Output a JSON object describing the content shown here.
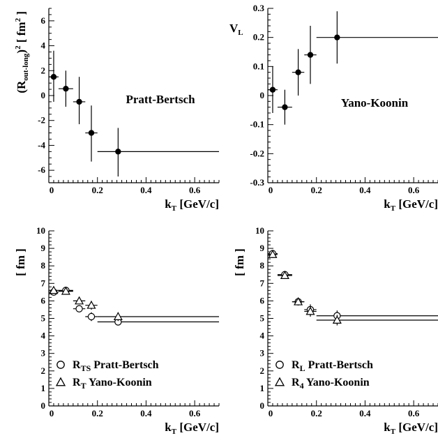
{
  "chart_data": [
    {
      "type": "scatter",
      "annotation": "Pratt-Bertsch",
      "xlabel": "k",
      "xlabel_sub": "T",
      "xlabel_unit": " [GeV/c]",
      "ylabel": "(R",
      "ylabel_sub": "out-long",
      "ylabel_rest": ")",
      "ylabel_sup": "2",
      "ylabel_unit": " [ fm",
      "ylabel_unit_sup": "2",
      "ylabel_close": " ]",
      "xlim": [
        0,
        0.7
      ],
      "ylim": [
        -7,
        7
      ],
      "xticks": [
        "0",
        "0.2",
        "0.4",
        "0.6"
      ],
      "yticks": [
        "-6",
        "-4",
        "-2",
        "0",
        "2",
        "4",
        "6"
      ],
      "series": [
        {
          "marker": "filled-circle",
          "points": [
            {
              "x": 0.02,
              "y": 1.5,
              "xlo": 0.0,
              "xhi": 0.04,
              "ylo": -0.5,
              "yhi": 3.6
            },
            {
              "x": 0.07,
              "y": 0.55,
              "xlo": 0.04,
              "xhi": 0.1,
              "ylo": -0.9,
              "yhi": 2.0
            },
            {
              "x": 0.125,
              "y": -0.5,
              "xlo": 0.1,
              "xhi": 0.15,
              "ylo": -2.3,
              "yhi": 1.5
            },
            {
              "x": 0.175,
              "y": -3.0,
              "xlo": 0.15,
              "xhi": 0.2,
              "ylo": -5.3,
              "yhi": -0.8
            },
            {
              "x": 0.285,
              "y": -4.5,
              "xlo": 0.2,
              "xhi": 0.7,
              "ylo": -6.5,
              "yhi": -2.6
            }
          ]
        }
      ]
    },
    {
      "type": "scatter",
      "annotation": "Yano-Koonin",
      "xlabel": "k",
      "xlabel_sub": "T",
      "xlabel_unit": " [GeV/c]",
      "ylabel": "V",
      "ylabel_sub": "L",
      "xlim": [
        0,
        0.7
      ],
      "ylim": [
        -0.3,
        0.3
      ],
      "xticks": [
        "0",
        "0.2",
        "0.4",
        "0.6"
      ],
      "yticks": [
        "-0.3",
        "-0.2",
        "-0.1",
        "0",
        "0.1",
        "0.2",
        "0.3"
      ],
      "series": [
        {
          "marker": "filled-circle",
          "points": [
            {
              "x": 0.02,
              "y": 0.02,
              "xlo": 0.0,
              "xhi": 0.04,
              "ylo": -0.06,
              "yhi": 0.1
            },
            {
              "x": 0.07,
              "y": -0.04,
              "xlo": 0.04,
              "xhi": 0.1,
              "ylo": -0.1,
              "yhi": 0.02
            },
            {
              "x": 0.125,
              "y": 0.08,
              "xlo": 0.1,
              "xhi": 0.15,
              "ylo": 0.0,
              "yhi": 0.16
            },
            {
              "x": 0.175,
              "y": 0.14,
              "xlo": 0.15,
              "xhi": 0.2,
              "ylo": 0.04,
              "yhi": 0.24
            },
            {
              "x": 0.285,
              "y": 0.2,
              "xlo": 0.2,
              "xhi": 0.7,
              "ylo": 0.11,
              "yhi": 0.29
            }
          ]
        }
      ]
    },
    {
      "type": "scatter",
      "xlabel": "k",
      "xlabel_sub": "T",
      "xlabel_unit": " [GeV/c]",
      "ylabel": "[ fm ]",
      "xlim": [
        0,
        0.7
      ],
      "ylim": [
        0,
        10
      ],
      "xticks": [
        "0",
        "0.2",
        "0.4",
        "0.6"
      ],
      "yticks": [
        "0",
        "1",
        "2",
        "3",
        "4",
        "5",
        "6",
        "7",
        "8",
        "9",
        "10"
      ],
      "legend": [
        {
          "marker": "open-circle",
          "label": "R",
          "sub": "TS",
          "text": "Pratt-Bertsch"
        },
        {
          "marker": "open-triangle",
          "label": "R",
          "sub": "T",
          "text": "Yano-Koonin"
        }
      ],
      "series": [
        {
          "marker": "open-circle",
          "points": [
            {
              "x": 0.02,
              "y": 6.5,
              "xlo": 0.0,
              "xhi": 0.04,
              "ylo": 6.35,
              "yhi": 6.65
            },
            {
              "x": 0.07,
              "y": 6.6,
              "xlo": 0.04,
              "xhi": 0.1,
              "ylo": 6.45,
              "yhi": 6.75
            },
            {
              "x": 0.125,
              "y": 5.55,
              "xlo": 0.1,
              "xhi": 0.15,
              "ylo": 5.35,
              "yhi": 5.75
            },
            {
              "x": 0.175,
              "y": 5.1,
              "xlo": 0.15,
              "xhi": 0.2,
              "ylo": 4.85,
              "yhi": 5.35
            },
            {
              "x": 0.285,
              "y": 4.8,
              "xlo": 0.2,
              "xhi": 0.7,
              "ylo": 4.6,
              "yhi": 5.0
            }
          ]
        },
        {
          "marker": "open-triangle",
          "points": [
            {
              "x": 0.02,
              "y": 6.6,
              "xlo": 0.0,
              "xhi": 0.04,
              "ylo": 6.45,
              "yhi": 6.75
            },
            {
              "x": 0.07,
              "y": 6.55,
              "xlo": 0.04,
              "xhi": 0.1,
              "ylo": 6.4,
              "yhi": 6.7
            },
            {
              "x": 0.125,
              "y": 6.0,
              "xlo": 0.1,
              "xhi": 0.15,
              "ylo": 5.8,
              "yhi": 6.2
            },
            {
              "x": 0.175,
              "y": 5.75,
              "xlo": 0.15,
              "xhi": 0.2,
              "ylo": 5.5,
              "yhi": 6.0
            },
            {
              "x": 0.285,
              "y": 5.1,
              "xlo": 0.2,
              "xhi": 0.7,
              "ylo": 4.85,
              "yhi": 5.35
            }
          ]
        }
      ]
    },
    {
      "type": "scatter",
      "xlabel": "k",
      "xlabel_sub": "T",
      "xlabel_unit": " [GeV/c]",
      "ylabel": "[ fm ]",
      "xlim": [
        0,
        0.7
      ],
      "ylim": [
        0,
        10
      ],
      "xticks": [
        "0",
        "0.2",
        "0.4",
        "0.6"
      ],
      "yticks": [
        "0",
        "1",
        "2",
        "3",
        "4",
        "5",
        "6",
        "7",
        "8",
        "9",
        "10"
      ],
      "legend": [
        {
          "marker": "open-circle",
          "label": "R",
          "sub": "L",
          "text": "Pratt-Bertsch"
        },
        {
          "marker": "open-triangle",
          "label": "R",
          "sub": "4",
          "text": "Yano-Koonin"
        }
      ],
      "series": [
        {
          "marker": "open-circle",
          "points": [
            {
              "x": 0.02,
              "y": 8.7,
              "xlo": 0.0,
              "xhi": 0.04,
              "ylo": 8.5,
              "yhi": 8.9
            },
            {
              "x": 0.07,
              "y": 7.5,
              "xlo": 0.04,
              "xhi": 0.1,
              "ylo": 7.3,
              "yhi": 7.7
            },
            {
              "x": 0.125,
              "y": 5.95,
              "xlo": 0.1,
              "xhi": 0.15,
              "ylo": 5.75,
              "yhi": 6.15
            },
            {
              "x": 0.175,
              "y": 5.5,
              "xlo": 0.15,
              "xhi": 0.2,
              "ylo": 5.2,
              "yhi": 5.8
            },
            {
              "x": 0.285,
              "y": 5.15,
              "xlo": 0.2,
              "xhi": 0.7,
              "ylo": 4.85,
              "yhi": 5.45
            }
          ]
        },
        {
          "marker": "open-triangle",
          "points": [
            {
              "x": 0.02,
              "y": 8.65,
              "xlo": 0.0,
              "xhi": 0.04,
              "ylo": 8.45,
              "yhi": 8.85
            },
            {
              "x": 0.07,
              "y": 7.45,
              "xlo": 0.04,
              "xhi": 0.1,
              "ylo": 7.25,
              "yhi": 7.65
            },
            {
              "x": 0.125,
              "y": 5.95,
              "xlo": 0.1,
              "xhi": 0.15,
              "ylo": 5.75,
              "yhi": 6.15
            },
            {
              "x": 0.175,
              "y": 5.4,
              "xlo": 0.15,
              "xhi": 0.2,
              "ylo": 5.1,
              "yhi": 5.7
            },
            {
              "x": 0.285,
              "y": 4.9,
              "xlo": 0.2,
              "xhi": 0.7,
              "ylo": 4.6,
              "yhi": 5.2
            }
          ]
        }
      ]
    }
  ]
}
